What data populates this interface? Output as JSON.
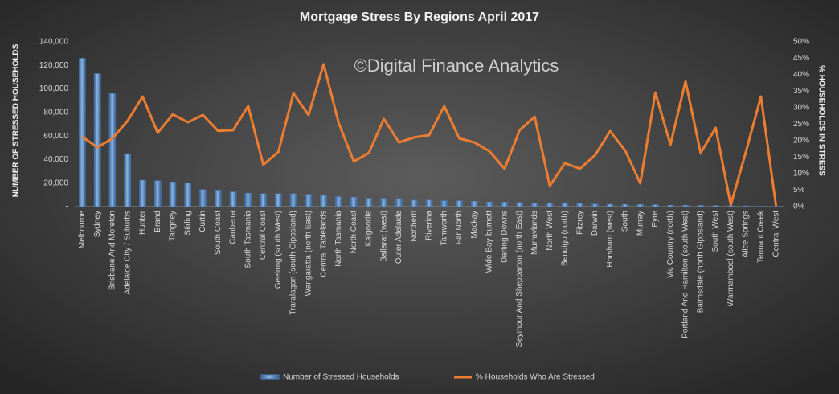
{
  "chart_data": {
    "type": "combo",
    "title": "Mortgage  Stress  By Regions  April  2017",
    "annotation": "©Digital Finance Analytics",
    "y_label": "NUMBER OF STRESSED HOUSEHOLDS",
    "y2_label": "% HOUSEHOLDS IN STRESS",
    "categories": [
      "Melbourne",
      "Sydney",
      "Brisbane And Moreton",
      "Adelaide City / Suburbs",
      "Hunter",
      "Brand",
      "Tangney",
      "Stirling",
      "Curtin",
      "South Coast",
      "Canberra",
      "South Tasmania",
      "Central Coast",
      "Geelong (south West)",
      "Traralagon (south Gippsland)",
      "Wangaratta (north East)",
      "Central Tablelands",
      "North Tasmania",
      "North Coast",
      "Kalgoorlie",
      "Ballarat (west)",
      "Outer Adelaide",
      "Northern",
      "Riverina",
      "Tamworth",
      "Far North",
      "Mackay",
      "Wide Bay-burnett",
      "Darling Downs",
      "Seymour And Shepparton (north East)",
      "Murraylands",
      "North West",
      "Bendigo (north)",
      "Fitzroy",
      "Darwin",
      "Horsham (west)",
      "South",
      "Murray",
      "Eyre",
      "Vic Country (north)",
      "Portland And Hamilton (south West)",
      "Bairnsdale (north Gippsland)",
      "South West",
      "Warrnambool (south West)",
      "Alice Springs",
      "Tennant Creek",
      "Central West"
    ],
    "series": [
      {
        "name": "Number of Stressed Households",
        "type": "bar",
        "color": "#4f81bd",
        "values": [
          126000,
          113000,
          96000,
          45000,
          22500,
          22000,
          21000,
          20000,
          14500,
          14000,
          12500,
          11500,
          11000,
          11000,
          11000,
          10500,
          9500,
          8500,
          8000,
          7000,
          7000,
          6800,
          5500,
          5500,
          5000,
          5000,
          4500,
          4000,
          3800,
          3500,
          3200,
          3000,
          2800,
          2500,
          2200,
          2000,
          1900,
          1800,
          1600,
          1200,
          1100,
          1000,
          900,
          700,
          600,
          300,
          200
        ]
      },
      {
        "name": "% Households Who Are Stressed",
        "type": "line",
        "color": "#ed7d31",
        "axis": "y2",
        "values": [
          21.2,
          18,
          20.7,
          26,
          33.4,
          22.4,
          28,
          25.6,
          27.8,
          23,
          23.2,
          30.5,
          12.7,
          16.6,
          34.4,
          27.8,
          43.2,
          25.4,
          13.7,
          16.3,
          26.6,
          19.5,
          21,
          21.7,
          30.5,
          20.7,
          19.5,
          16.8,
          11.5,
          23.2,
          27.3,
          6.3,
          13.2,
          11.5,
          15.6,
          22.9,
          17,
          7.1,
          34.6,
          18.8,
          38,
          16.3,
          23.9,
          0.5,
          16.6,
          33.4,
          0.2
        ]
      }
    ],
    "ylim": [
      0,
      140000
    ],
    "yticks": [
      {
        "value": 0,
        "label": "-"
      },
      {
        "value": 20000,
        "label": "20,000"
      },
      {
        "value": 40000,
        "label": "40,000"
      },
      {
        "value": 60000,
        "label": "60,000"
      },
      {
        "value": 80000,
        "label": "80,000"
      },
      {
        "value": 100000,
        "label": "100,000"
      },
      {
        "value": 120000,
        "label": "120,000"
      },
      {
        "value": 140000,
        "label": "140,000"
      }
    ],
    "y2lim": [
      0,
      50
    ],
    "y2ticks": [
      {
        "value": 0,
        "label": "0%"
      },
      {
        "value": 5,
        "label": "5%"
      },
      {
        "value": 10,
        "label": "10%"
      },
      {
        "value": 15,
        "label": "15%"
      },
      {
        "value": 20,
        "label": "20%"
      },
      {
        "value": 25,
        "label": "25%"
      },
      {
        "value": 30,
        "label": "30%"
      },
      {
        "value": 35,
        "label": "35%"
      },
      {
        "value": 40,
        "label": "40%"
      },
      {
        "value": 45,
        "label": "45%"
      },
      {
        "value": 50,
        "label": "50%"
      }
    ],
    "grid": false
  }
}
